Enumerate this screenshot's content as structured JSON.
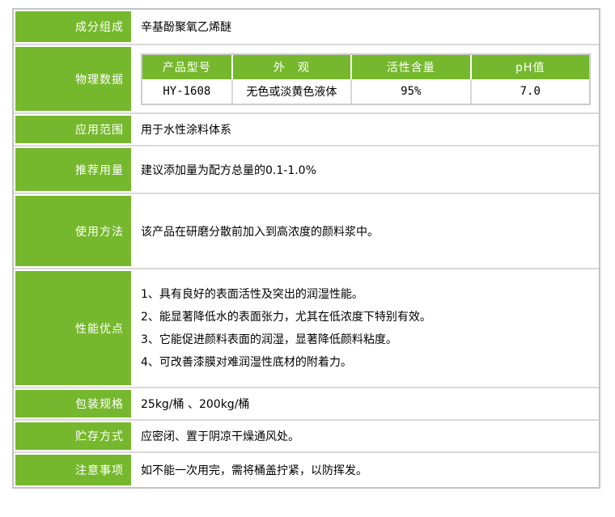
{
  "product_table": {
    "colors": {
      "accent_green": "#76b82d",
      "outer_border": "#c3c3c3",
      "inner_border": "#d9d9d9",
      "label_text": "#ffffff",
      "body_text": "#000000"
    },
    "rows": [
      {
        "label": "成分组成",
        "content": "辛基酚聚氧乙烯醚"
      },
      {
        "label": "物理数据",
        "content": ""
      },
      {
        "label": "应用范围",
        "content": "用于水性涂料体系"
      },
      {
        "label": "推荐用量",
        "content": "建议添加量为配方总量的0.1-1.0%"
      },
      {
        "label": "使用方法",
        "content": "该产品在研磨分散前加入到高浓度的颜料浆中。"
      },
      {
        "label": "性能优点",
        "content": ""
      },
      {
        "label": "包装规格",
        "content": "25kg/桶 、200kg/桶"
      },
      {
        "label": "贮存方式",
        "content": "应密闭、置于阴凉干燥通风处。"
      },
      {
        "label": "注意事项",
        "content": "如不能一次用完，需将桶盖拧紧，以防挥发。"
      }
    ],
    "physical_data": {
      "headers": [
        "产品型号",
        "外　观",
        "活性含量",
        "pH值"
      ],
      "values": [
        "HY-1608",
        "无色或淡黄色液体",
        "95%",
        "7.0"
      ]
    },
    "performance_points": [
      "1、具有良好的表面活性及突出的润湿性能。",
      "2、能显著降低水的表面张力，尤其在低浓度下特别有效。",
      "3、它能促进颜料表面的润湿，显著降低颜料粘度。",
      "4、可改善漆膜对难润湿性底材的附着力。"
    ]
  }
}
